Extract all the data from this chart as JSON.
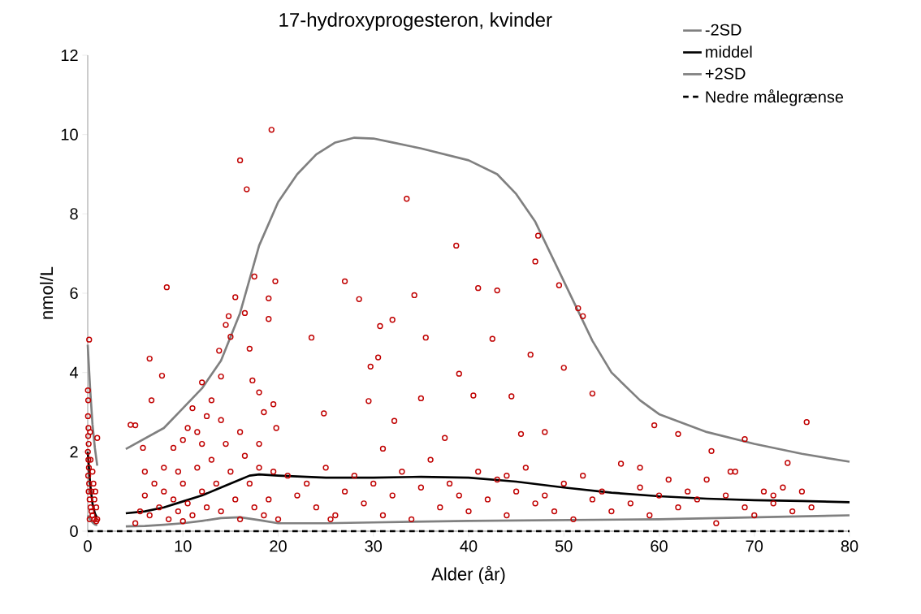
{
  "chart_data": {
    "type": "line",
    "title": "17-hydroxyprogesteron,  kvinder",
    "xlabel": "Alder (år)",
    "ylabel": "nmol/L",
    "xlim": [
      0,
      80
    ],
    "xticks": [
      0,
      10,
      20,
      30,
      40,
      50,
      60,
      70,
      80
    ],
    "ylim": [
      0,
      12
    ],
    "yticks": [
      0,
      2,
      4,
      6,
      8,
      10,
      12
    ],
    "grid": false,
    "legend": "top right",
    "series": [
      {
        "name": "-2SD",
        "color": "#808080",
        "x": [
          0,
          0.25,
          0.5,
          0.75,
          1.0,
          null,
          4,
          6,
          8,
          10,
          12,
          14,
          16,
          18,
          20,
          25,
          30,
          40,
          50,
          60,
          70,
          80
        ],
        "values": [
          0.4,
          0.3,
          0.22,
          0.17,
          0.15,
          null,
          0.12,
          0.13,
          0.16,
          0.2,
          0.26,
          0.33,
          0.35,
          0.28,
          0.2,
          0.2,
          0.22,
          0.26,
          0.28,
          0.3,
          0.35,
          0.4
        ]
      },
      {
        "name": "middel",
        "color": "#000000",
        "x": [
          0,
          0.1,
          0.25,
          0.5,
          0.75,
          0.95,
          null,
          4,
          6,
          8,
          10,
          12,
          14,
          16,
          17,
          18,
          20,
          25,
          30,
          35,
          40,
          45,
          50,
          55,
          60,
          65,
          70,
          75,
          80
        ],
        "values": [
          2.0,
          1.7,
          1.2,
          0.7,
          0.45,
          0.35,
          null,
          0.45,
          0.5,
          0.6,
          0.75,
          0.9,
          1.1,
          1.3,
          1.4,
          1.43,
          1.4,
          1.35,
          1.35,
          1.37,
          1.35,
          1.25,
          1.1,
          0.97,
          0.88,
          0.82,
          0.78,
          0.76,
          0.73
        ]
      },
      {
        "name": "+2SD",
        "color": "#808080",
        "x": [
          0,
          0.25,
          0.5,
          0.75,
          1.0,
          null,
          4,
          8,
          10,
          12,
          14,
          16,
          18,
          20,
          22,
          24,
          26,
          28,
          30,
          32,
          35,
          40,
          43,
          45,
          47,
          49,
          51,
          53,
          55,
          58,
          60,
          65,
          70,
          75,
          80
        ],
        "values": [
          4.7,
          3.6,
          2.7,
          2.1,
          1.65,
          null,
          2.07,
          2.6,
          3.1,
          3.6,
          4.3,
          5.5,
          7.2,
          8.3,
          9.0,
          9.5,
          9.8,
          9.92,
          9.9,
          9.8,
          9.65,
          9.35,
          9.0,
          8.5,
          7.8,
          6.8,
          5.8,
          4.8,
          4.0,
          3.3,
          2.95,
          2.5,
          2.2,
          1.95,
          1.75
        ]
      },
      {
        "name": "Nedre målegrænse",
        "line_style": "dashed",
        "color": "#000000",
        "x": [
          0,
          80
        ],
        "values": [
          0,
          0
        ]
      },
      {
        "type": "scatter",
        "marker": "circle",
        "color": "#c00000",
        "x": [
          0.02,
          0.05,
          0.03,
          0.08,
          0.05,
          0.1,
          0.02,
          0.07,
          0.12,
          0.05,
          0.15,
          0.1,
          0.2,
          0.3,
          0.4,
          0.5,
          0.7,
          0.9,
          0.3,
          0.25,
          0.15,
          0.5,
          0.6,
          0.8,
          1.0,
          0.9,
          0.7,
          1.0,
          0.4,
          0.2,
          4.5,
          5,
          5.8,
          6.5,
          6.7,
          7.8,
          8.3,
          9,
          9.5,
          10,
          10.5,
          11,
          11.5,
          12,
          12.5,
          13,
          13.8,
          14,
          14.5,
          14.8,
          15,
          15.5,
          16,
          16.7,
          16.5,
          17,
          17.5,
          17.3,
          18,
          18.5,
          19,
          19,
          19.3,
          19.7,
          19.5,
          19.8,
          5,
          5.5,
          6,
          6.5,
          7,
          7.5,
          8,
          8.5,
          9,
          9.5,
          10,
          10.5,
          11,
          11.5,
          12,
          12.5,
          13,
          13.5,
          14,
          14.5,
          15,
          15.5,
          16,
          16.5,
          17,
          17.5,
          18,
          18.5,
          19,
          19.5,
          20,
          16,
          12,
          8,
          6,
          10,
          14,
          18,
          23.5,
          24.8,
          27,
          28.5,
          29.7,
          30.5,
          30.7,
          32,
          33.5,
          34.3,
          35.5,
          38.7,
          39,
          41,
          43,
          42.5,
          44.5,
          40.5,
          46.5,
          47,
          47.3,
          49.5,
          50,
          51.5,
          52,
          53,
          59.5,
          62,
          65.5,
          69,
          75.5,
          73.5,
          29.5,
          31,
          32.2,
          35,
          37.5,
          48,
          45.5,
          21,
          22,
          23,
          24,
          25,
          26,
          27,
          28,
          29,
          30,
          31,
          32,
          33,
          34,
          35,
          36,
          37,
          38,
          39,
          40,
          41,
          42,
          43,
          44,
          45,
          46,
          47,
          48,
          49,
          50,
          51,
          52,
          53,
          54,
          55,
          56,
          57,
          58,
          59,
          60,
          61,
          62,
          63,
          64,
          65,
          66,
          67,
          68,
          69,
          70,
          71,
          72,
          73,
          74,
          75,
          76,
          25.5,
          44,
          58,
          67.5,
          72
        ],
        "values": [
          3.55,
          3.3,
          2.9,
          2.6,
          2.4,
          2.2,
          2.0,
          1.8,
          1.6,
          1.4,
          1.2,
          1.0,
          0.8,
          0.6,
          0.5,
          0.4,
          0.3,
          0.25,
          1.8,
          2.5,
          4.83,
          1.5,
          1.2,
          1.0,
          2.35,
          0.6,
          0.8,
          0.3,
          1.0,
          0.3,
          2.68,
          2.67,
          2.1,
          4.35,
          3.3,
          3.92,
          6.15,
          2.1,
          1.5,
          2.3,
          2.6,
          3.1,
          2.5,
          3.75,
          2.9,
          3.3,
          4.55,
          3.9,
          5.2,
          5.42,
          4.9,
          5.9,
          9.35,
          8.62,
          5.5,
          4.6,
          6.42,
          3.8,
          3.5,
          3.0,
          5.87,
          5.35,
          10.12,
          6.3,
          3.2,
          2.6,
          0.2,
          0.5,
          0.9,
          0.4,
          1.2,
          0.6,
          1.0,
          0.3,
          0.8,
          0.5,
          1.2,
          0.7,
          0.4,
          1.6,
          1.0,
          0.6,
          1.8,
          1.2,
          0.5,
          2.2,
          1.5,
          0.8,
          2.5,
          1.9,
          1.2,
          0.6,
          1.6,
          0.4,
          0.8,
          1.5,
          0.3,
          0.3,
          2.2,
          1.6,
          1.5,
          0.25,
          2.8,
          2.2,
          4.88,
          2.97,
          6.3,
          5.85,
          4.15,
          4.38,
          5.17,
          5.33,
          8.38,
          5.95,
          4.88,
          7.2,
          3.97,
          6.13,
          6.07,
          4.85,
          3.4,
          3.42,
          4.45,
          6.8,
          7.45,
          6.2,
          4.12,
          5.62,
          5.42,
          3.47,
          2.67,
          2.45,
          2.02,
          2.32,
          2.75,
          1.72,
          3.28,
          2.08,
          2.78,
          3.35,
          2.35,
          2.5,
          2.45,
          1.4,
          0.9,
          1.2,
          0.6,
          1.6,
          0.4,
          1.0,
          1.4,
          0.7,
          1.2,
          0.4,
          0.9,
          1.5,
          0.3,
          1.1,
          1.8,
          0.6,
          1.2,
          0.9,
          0.5,
          1.5,
          0.8,
          1.3,
          0.4,
          1.0,
          1.6,
          0.7,
          0.9,
          0.5,
          1.2,
          0.3,
          1.4,
          0.8,
          1.0,
          0.5,
          1.7,
          0.7,
          1.1,
          0.4,
          0.9,
          1.3,
          0.6,
          1.0,
          0.8,
          1.3,
          0.2,
          0.9,
          1.5,
          0.6,
          0.4,
          1.0,
          0.7,
          1.1,
          0.5,
          1.0,
          0.6,
          0.3,
          1.4,
          1.6,
          1.5,
          0.9
        ]
      }
    ]
  }
}
